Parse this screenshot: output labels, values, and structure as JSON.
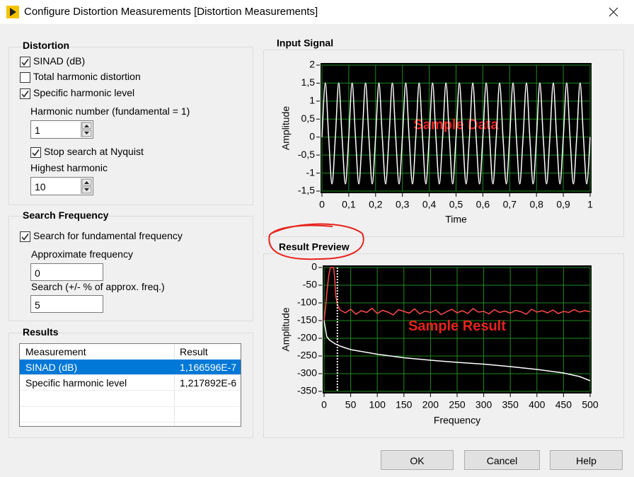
{
  "window": {
    "title": "Configure Distortion Measurements [Distortion Measurements]"
  },
  "distortion": {
    "title": "Distortion",
    "sinad": {
      "label": "SINAD (dB)",
      "checked": true
    },
    "thd": {
      "label": "Total harmonic distortion",
      "checked": false
    },
    "specific": {
      "label": "Specific harmonic level",
      "checked": true
    },
    "harmonic_number": {
      "label": "Harmonic number (fundamental = 1)",
      "value": 1
    },
    "nyquist": {
      "label": "Stop search at Nyquist",
      "checked": true
    },
    "highest_harmonic": {
      "label": "Highest harmonic",
      "value": 10
    }
  },
  "search_frequency": {
    "title": "Search Frequency",
    "search": {
      "label": "Search for fundamental frequency",
      "checked": true
    },
    "approx": {
      "label": "Approximate frequency",
      "value": 0
    },
    "range": {
      "label": "Search (+/- % of approx. freq.)",
      "value": 5
    }
  },
  "results": {
    "title": "Results",
    "columns": [
      "Measurement",
      "Result"
    ],
    "rows": [
      [
        "SINAD (dB)",
        "1,166596E-7"
      ],
      [
        "Specific harmonic level",
        "1,217892E-6"
      ]
    ],
    "selected_row": 0
  },
  "buttons": [
    "OK",
    "Cancel",
    "Help"
  ],
  "chart_data": [
    {
      "type": "line",
      "title": "Input Signal",
      "x_label": "Time",
      "y_label": "Amplitude",
      "annotation": "Sample Data",
      "grid": true,
      "xlim": [
        0,
        1
      ],
      "ylim": [
        -1.5,
        2
      ],
      "xticks": [
        0,
        {
          "value": 0.1,
          "label": "0,1"
        },
        {
          "value": 0.2,
          "label": "0,2"
        },
        {
          "value": 0.3,
          "label": "0,3"
        },
        {
          "value": 0.4,
          "label": "0,4"
        },
        {
          "value": 0.5,
          "label": "0,5"
        },
        {
          "value": 0.6,
          "label": "0,6"
        },
        {
          "value": 0.7,
          "label": "0,7"
        },
        {
          "value": 0.8,
          "label": "0,8"
        },
        {
          "value": 0.9,
          "label": "0,9"
        },
        1
      ],
      "yticks": [
        2,
        {
          "value": 1.5,
          "label": "1,5"
        },
        1,
        {
          "value": 0.5,
          "label": "0,5"
        },
        0,
        {
          "value": -0.5,
          "label": "-0,5"
        },
        -1,
        {
          "value": -1.5,
          "label": "-1,5"
        }
      ],
      "series": [
        {
          "color": "#ffffff",
          "smooth": true,
          "x": [
            0,
            0.0125,
            0.025,
            0.0375,
            0.05,
            0.0625,
            0.075,
            0.0875,
            0.1,
            0.1125,
            0.125,
            0.1375,
            0.15,
            0.1625,
            0.175,
            0.1875,
            0.2,
            0.2125,
            0.225,
            0.2375,
            0.25,
            0.2625,
            0.275,
            0.2875,
            0.3,
            0.3125,
            0.325,
            0.3375,
            0.35,
            0.3625,
            0.375,
            0.3875,
            0.4,
            0.4125,
            0.425,
            0.4375,
            0.45,
            0.4625,
            0.475,
            0.4875,
            0.5,
            0.5125,
            0.525,
            0.5375,
            0.55,
            0.5625,
            0.575,
            0.5875,
            0.6,
            0.6125,
            0.625,
            0.6375,
            0.65,
            0.6625,
            0.675,
            0.6875,
            0.7,
            0.7125,
            0.725,
            0.7375,
            0.75,
            0.7625,
            0.775,
            0.7875,
            0.8,
            0.8125,
            0.825,
            0.8375,
            0.85,
            0.8625,
            0.875,
            0.8875,
            0.9,
            0.9125,
            0.925,
            0.9375,
            0.95,
            0.9625,
            0.975,
            0.9875,
            1
          ],
          "values": [
            0,
            1.5,
            0,
            -1.3,
            0,
            1.5,
            0,
            -1.3,
            0,
            1.5,
            0,
            -1.3,
            0,
            1.5,
            0,
            -1.3,
            0,
            1.5,
            0,
            -1.3,
            0,
            1.5,
            0,
            -1.3,
            0,
            1.5,
            0,
            -1.3,
            0,
            1.5,
            0,
            -1.3,
            0,
            1.5,
            0,
            -1.3,
            0,
            1.5,
            0,
            -1.3,
            0,
            1.5,
            0,
            -1.3,
            0,
            1.5,
            0,
            -1.3,
            0,
            1.5,
            0,
            -1.3,
            0,
            1.5,
            0,
            -1.3,
            0,
            1.5,
            0,
            -1.3,
            0,
            1.5,
            0,
            -1.3,
            0,
            1.5,
            0,
            -1.3,
            0,
            1.5,
            0,
            -1.3,
            0,
            1.5,
            0,
            -1.3,
            0,
            1.5,
            0,
            -1.3,
            0
          ]
        }
      ]
    },
    {
      "type": "line",
      "title": "Result Preview",
      "x_label": "Frequency",
      "y_label": "Amplitude",
      "annotation": "Sample Result",
      "grid": true,
      "xlim": [
        0,
        500
      ],
      "ylim": [
        -350,
        0
      ],
      "xticks": [
        0,
        50,
        100,
        150,
        200,
        250,
        300,
        350,
        400,
        450,
        500
      ],
      "yticks": [
        0,
        -50,
        -100,
        -150,
        -200,
        -250,
        -300,
        -350
      ],
      "cursor": 25,
      "series": [
        {
          "color": "#ff4a4a",
          "smooth": false,
          "x": [
            0,
            3,
            6,
            9,
            12,
            15,
            18,
            20,
            22,
            25,
            30,
            40,
            50,
            60,
            70,
            80,
            90,
            100,
            110,
            120,
            130,
            140,
            150,
            160,
            170,
            180,
            190,
            200,
            210,
            220,
            230,
            240,
            250,
            260,
            270,
            280,
            290,
            300,
            310,
            320,
            330,
            340,
            350,
            360,
            370,
            380,
            390,
            400,
            410,
            420,
            430,
            440,
            450,
            460,
            470,
            480,
            490,
            500
          ],
          "values": [
            -150,
            -110,
            -60,
            -20,
            0,
            0,
            0,
            -30,
            -80,
            -105,
            -120,
            -128,
            -118,
            -132,
            -122,
            -127,
            -115,
            -130,
            -121,
            -126,
            -134,
            -119,
            -124,
            -129,
            -117,
            -131,
            -123,
            -127,
            -120,
            -133,
            -125,
            -118,
            -128,
            -122,
            -130,
            -116,
            -126,
            -124,
            -131,
            -119,
            -127,
            -123,
            -129,
            -121,
            -125,
            -132,
            -118,
            -126,
            -122,
            -128,
            -120,
            -130,
            -124,
            -127,
            -119,
            -126,
            -122,
            -125
          ]
        },
        {
          "color": "#ffffff",
          "smooth": false,
          "x": [
            0,
            5,
            10,
            20,
            30,
            50,
            100,
            150,
            200,
            250,
            300,
            350,
            400,
            450,
            480,
            500
          ],
          "values": [
            -150,
            -195,
            -205,
            -215,
            -222,
            -232,
            -245,
            -255,
            -262,
            -268,
            -273,
            -280,
            -288,
            -298,
            -308,
            -320
          ]
        }
      ]
    }
  ]
}
